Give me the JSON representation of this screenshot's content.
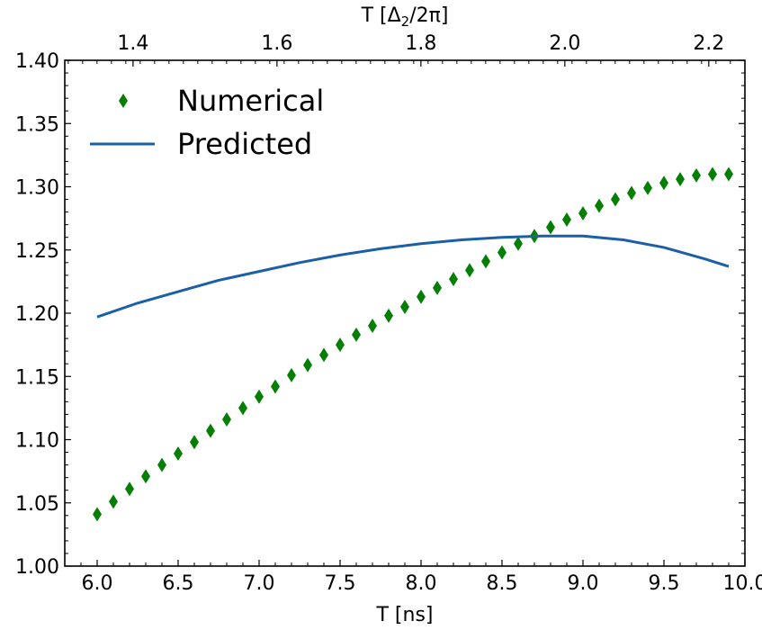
{
  "chart_data": {
    "type": "line+scatter",
    "xlabel": "T [ns]",
    "xlabel_top_prefix": "T [Δ",
    "xlabel_top_sub": "2",
    "xlabel_top_suffix": "/2π]",
    "ylabel": "",
    "xlim": [
      5.8,
      10.0
    ],
    "ylim": [
      1.0,
      1.4
    ],
    "x_ticks": [
      6.0,
      6.5,
      7.0,
      7.5,
      8.0,
      8.5,
      9.0,
      9.5,
      10.0
    ],
    "x_tick_labels": [
      "6.0",
      "6.5",
      "7.0",
      "7.5",
      "8.0",
      "8.5",
      "9.0",
      "9.5",
      "10.0"
    ],
    "y_ticks": [
      1.0,
      1.05,
      1.1,
      1.15,
      1.2,
      1.25,
      1.3,
      1.35,
      1.4
    ],
    "y_tick_labels": [
      "1.00",
      "1.05",
      "1.10",
      "1.15",
      "1.20",
      "1.25",
      "1.30",
      "1.35",
      "1.40"
    ],
    "top_axis": {
      "scale_ns_per_unit": 4.444,
      "ticks": [
        1.4,
        1.6,
        1.8,
        2.0,
        2.2
      ],
      "tick_labels": [
        "1.4",
        "1.6",
        "1.8",
        "2.0",
        "2.2"
      ]
    },
    "legend_position": "upper-left",
    "series": [
      {
        "name": "Numerical",
        "type": "scatter",
        "marker": "diamond",
        "color": "#047f04",
        "x": [
          6.0,
          6.1,
          6.2,
          6.3,
          6.4,
          6.5,
          6.6,
          6.7,
          6.8,
          6.9,
          7.0,
          7.1,
          7.2,
          7.3,
          7.4,
          7.5,
          7.6,
          7.7,
          7.8,
          7.9,
          8.0,
          8.1,
          8.2,
          8.3,
          8.4,
          8.5,
          8.6,
          8.7,
          8.8,
          8.9,
          9.0,
          9.1,
          9.2,
          9.3,
          9.4,
          9.5,
          9.6,
          9.7,
          9.8,
          9.9
        ],
        "y": [
          1.041,
          1.051,
          1.061,
          1.071,
          1.08,
          1.089,
          1.098,
          1.107,
          1.116,
          1.125,
          1.134,
          1.142,
          1.151,
          1.159,
          1.167,
          1.175,
          1.183,
          1.19,
          1.198,
          1.205,
          1.213,
          1.22,
          1.227,
          1.234,
          1.241,
          1.248,
          1.255,
          1.261,
          1.268,
          1.274,
          1.279,
          1.285,
          1.29,
          1.295,
          1.299,
          1.303,
          1.306,
          1.309,
          1.31,
          1.31
        ]
      },
      {
        "name": "Predicted",
        "type": "line",
        "color": "#1a5fa8",
        "x": [
          6.0,
          6.25,
          6.5,
          6.75,
          7.0,
          7.25,
          7.5,
          7.75,
          8.0,
          8.25,
          8.5,
          8.75,
          9.0,
          9.25,
          9.5,
          9.75,
          9.9
        ],
        "y": [
          1.197,
          1.208,
          1.217,
          1.226,
          1.233,
          1.24,
          1.246,
          1.251,
          1.255,
          1.258,
          1.26,
          1.261,
          1.261,
          1.258,
          1.252,
          1.243,
          1.237
        ]
      }
    ]
  }
}
